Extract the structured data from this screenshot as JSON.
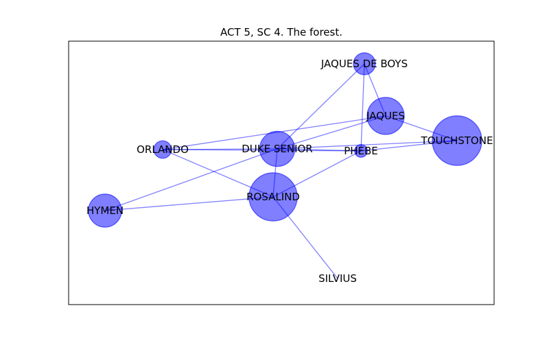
{
  "title": "ACT 5, SC 4. The forest.",
  "colors": {
    "node": "#0000ff",
    "edge": "#0000ff",
    "frame": "#000000"
  },
  "nodes": [
    {
      "id": "jaques_de_boys",
      "label": "JAQUES DE BOYS",
      "weight": 1
    },
    {
      "id": "jaques",
      "label": "JAQUES",
      "weight": 4
    },
    {
      "id": "touchstone",
      "label": "TOUCHSTONE",
      "weight": 8
    },
    {
      "id": "orlando",
      "label": "ORLANDO",
      "weight": 0.5
    },
    {
      "id": "duke_senior",
      "label": "DUKE SENIOR",
      "weight": 3.5
    },
    {
      "id": "phebe",
      "label": "PHEBE",
      "weight": 0.15
    },
    {
      "id": "hymen",
      "label": "HYMEN",
      "weight": 3
    },
    {
      "id": "rosalind",
      "label": "ROSALIND",
      "weight": 7.5
    },
    {
      "id": "silvius",
      "label": "SILVIUS",
      "weight": 0
    }
  ],
  "edges": [
    [
      "jaques_de_boys",
      "jaques"
    ],
    [
      "jaques_de_boys",
      "phebe"
    ],
    [
      "jaques_de_boys",
      "duke_senior"
    ],
    [
      "jaques",
      "touchstone"
    ],
    [
      "jaques",
      "orlando"
    ],
    [
      "jaques",
      "duke_senior"
    ],
    [
      "orlando",
      "duke_senior"
    ],
    [
      "orlando",
      "phebe"
    ],
    [
      "orlando",
      "rosalind"
    ],
    [
      "duke_senior",
      "phebe"
    ],
    [
      "duke_senior",
      "touchstone"
    ],
    [
      "duke_senior",
      "rosalind"
    ],
    [
      "duke_senior",
      "hymen"
    ],
    [
      "phebe",
      "touchstone"
    ],
    [
      "phebe",
      "rosalind"
    ],
    [
      "hymen",
      "rosalind"
    ],
    [
      "rosalind",
      "silvius"
    ]
  ]
}
